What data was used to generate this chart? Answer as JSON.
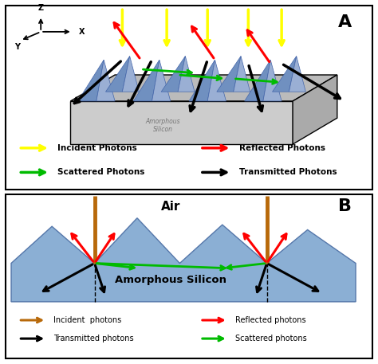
{
  "fig_width": 4.74,
  "fig_height": 4.57,
  "dpi": 100,
  "panel_A_label": "A",
  "panel_B_label": "B",
  "panel_B_air_label": "Air",
  "panel_B_silicon_label": "Amorphous Silicon",
  "panel_A_silicon_label": "Amorphous\nSilicon",
  "legend_A": {
    "yellow": "Incident Photons",
    "red": "Reflected Photons",
    "green": "Scattered Photons",
    "black": "Transmitted Photons"
  },
  "legend_B": {
    "orange": "Incident  photons",
    "red": "Reflected photons",
    "black": "Transmitted photons",
    "green": "Scattered photons"
  },
  "colors": {
    "yellow": "#FFFF00",
    "red": "#FF0000",
    "green": "#00BB00",
    "black": "#000000",
    "orange": "#B8690A",
    "blue_pyramid_light": "#9AAFD4",
    "blue_pyramid_dark": "#7090C0",
    "blue_pyramid_edge": "#4466AA",
    "gray_top": "#BBBBBB",
    "gray_front": "#CCCCCC",
    "gray_right": "#AAAAAA",
    "light_blue": "#8BAFD4",
    "white": "#FFFFFF",
    "border": "#000000"
  }
}
